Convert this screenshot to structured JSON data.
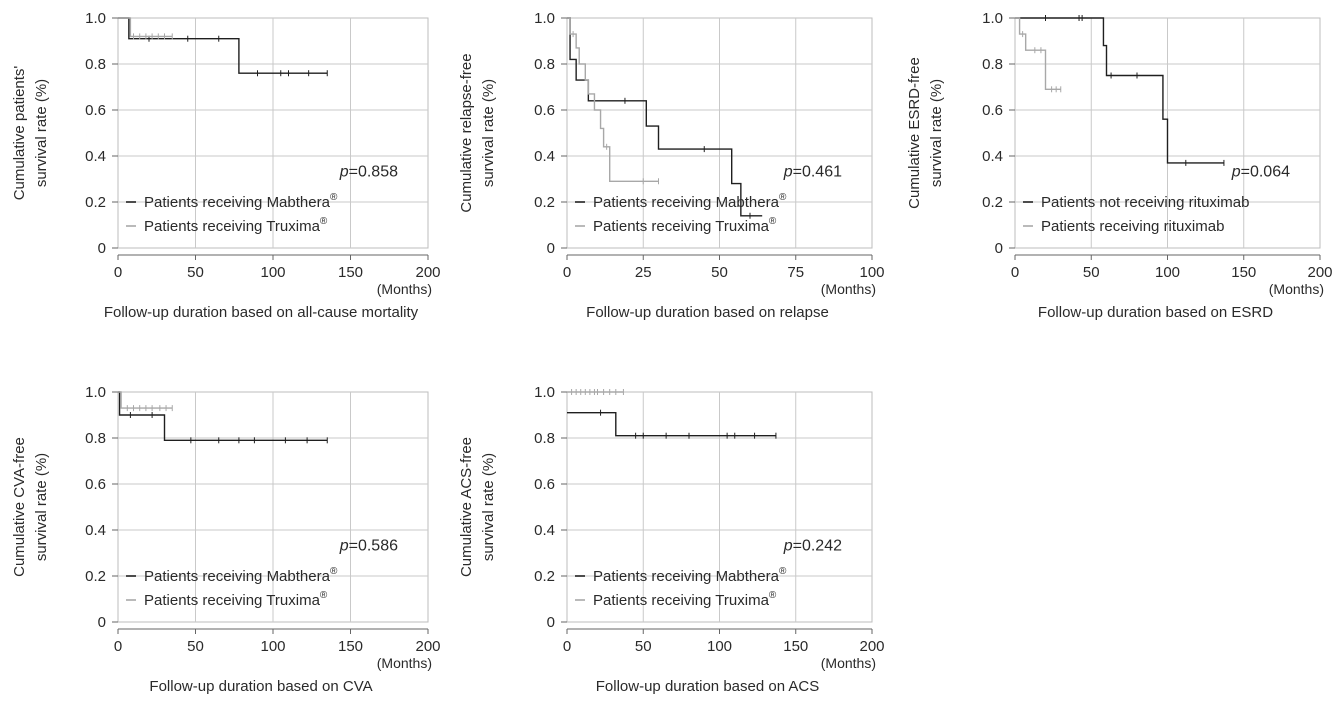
{
  "charts": [
    {
      "type": "line",
      "subtype": "kaplan-meier",
      "title": "",
      "xlabel": "Follow-up duration based on all-cause mortality",
      "x_unit": "(Months)",
      "ylabel": [
        "Cumulative patients'",
        "survival rate (%)"
      ],
      "xlim": [
        0,
        200
      ],
      "ylim": [
        0,
        1.0
      ],
      "x_ticks": [
        "0",
        "50",
        "100",
        "150",
        "200"
      ],
      "y_ticks": [
        "0",
        "0.2",
        "0.4",
        "0.6",
        "0.8",
        "1.0"
      ],
      "p_prefix": "p",
      "p_value": "=0.858",
      "legend": [
        {
          "label": "Patients receiving Mabthera",
          "sup": "®",
          "color": "#1f1f1f"
        },
        {
          "label": "Patients receiving Truxima",
          "sup": "®",
          "color": "#a8a8a8"
        }
      ],
      "series": [
        {
          "name": "Patients receiving Mabthera",
          "color": "#1f1f1f",
          "steps": [
            [
              0,
              1.0
            ],
            [
              7,
              0.91
            ],
            [
              78,
              0.76
            ],
            [
              135,
              0.76
            ]
          ],
          "censored": [
            20,
            45,
            65,
            90,
            105,
            110,
            123,
            135
          ]
        },
        {
          "name": "Patients receiving Truxima",
          "color": "#a8a8a8",
          "steps": [
            [
              0,
              1.0
            ],
            [
              8,
              0.92
            ],
            [
              35,
              0.92
            ]
          ],
          "censored": [
            10,
            14,
            18,
            22,
            26,
            30,
            35
          ]
        }
      ]
    },
    {
      "type": "line",
      "subtype": "kaplan-meier",
      "title": "",
      "xlabel": "Follow-up duration based on relapse",
      "x_unit": "(Months)",
      "ylabel": [
        "Cumulative relapse-free",
        "survival rate (%)"
      ],
      "xlim": [
        0,
        100
      ],
      "ylim": [
        0,
        1.0
      ],
      "x_ticks": [
        "0",
        "25",
        "50",
        "75",
        "100"
      ],
      "y_ticks": [
        "0",
        "0.2",
        "0.4",
        "0.6",
        "0.8",
        "1.0"
      ],
      "p_prefix": "p",
      "p_value": "=0.461",
      "legend": [
        {
          "label": "Patients receiving Mabthera",
          "sup": "®",
          "color": "#1f1f1f"
        },
        {
          "label": "Patients receiving Truxima",
          "sup": "®",
          "color": "#a8a8a8"
        }
      ],
      "series": [
        {
          "name": "Patients receiving Mabthera",
          "color": "#1f1f1f",
          "steps": [
            [
              0,
              1.0
            ],
            [
              1,
              0.82
            ],
            [
              3,
              0.73
            ],
            [
              7,
              0.64
            ],
            [
              26,
              0.53
            ],
            [
              30,
              0.43
            ],
            [
              54,
              0.28
            ],
            [
              57,
              0.14
            ],
            [
              64,
              0.14
            ]
          ],
          "censored": [
            19,
            45,
            60
          ]
        },
        {
          "name": "Patients receiving Truxima",
          "color": "#a8a8a8",
          "steps": [
            [
              0,
              1.0
            ],
            [
              1,
              0.93
            ],
            [
              3,
              0.87
            ],
            [
              4,
              0.8
            ],
            [
              6,
              0.73
            ],
            [
              7,
              0.67
            ],
            [
              9,
              0.6
            ],
            [
              11,
              0.52
            ],
            [
              12,
              0.44
            ],
            [
              14,
              0.29
            ],
            [
              30,
              0.29
            ]
          ],
          "censored": [
            2,
            13,
            25,
            30
          ]
        }
      ]
    },
    {
      "type": "line",
      "subtype": "kaplan-meier",
      "title": "",
      "xlabel": "Follow-up duration based on ESRD",
      "x_unit": "(Months)",
      "ylabel": [
        "Cumulative ESRD-free",
        "survival rate (%)"
      ],
      "xlim": [
        0,
        200
      ],
      "ylim": [
        0,
        1.0
      ],
      "x_ticks": [
        "0",
        "50",
        "100",
        "150",
        "200"
      ],
      "y_ticks": [
        "0",
        "0.2",
        "0.4",
        "0.6",
        "0.8",
        "1.0"
      ],
      "p_prefix": "p",
      "p_value": "=0.064",
      "legend": [
        {
          "label": "Patients not receiving rituximab",
          "sup": "",
          "color": "#1f1f1f"
        },
        {
          "label": "Patients receiving rituximab",
          "sup": "",
          "color": "#a8a8a8"
        }
      ],
      "series": [
        {
          "name": "Patients not receiving rituximab",
          "color": "#1f1f1f",
          "steps": [
            [
              0,
              1.0
            ],
            [
              58,
              0.88
            ],
            [
              60,
              0.75
            ],
            [
              97,
              0.56
            ],
            [
              100,
              0.37
            ],
            [
              137,
              0.37
            ]
          ],
          "censored": [
            20,
            42,
            44,
            63,
            80,
            112,
            137
          ]
        },
        {
          "name": "Patients receiving rituximab",
          "color": "#a8a8a8",
          "steps": [
            [
              0,
              1.0
            ],
            [
              3,
              0.93
            ],
            [
              7,
              0.86
            ],
            [
              20,
              0.69
            ],
            [
              30,
              0.69
            ]
          ],
          "censored": [
            5,
            13,
            17,
            24,
            27,
            30
          ]
        }
      ]
    },
    {
      "type": "line",
      "subtype": "kaplan-meier",
      "title": "",
      "xlabel": "Follow-up duration based on CVA",
      "x_unit": "(Months)",
      "ylabel": [
        "Cumulative CVA-free",
        "survival rate (%)"
      ],
      "xlim": [
        0,
        200
      ],
      "ylim": [
        0,
        1.0
      ],
      "x_ticks": [
        "0",
        "50",
        "100",
        "150",
        "200"
      ],
      "y_ticks": [
        "0",
        "0.2",
        "0.4",
        "0.6",
        "0.8",
        "1.0"
      ],
      "p_prefix": "p",
      "p_value": "=0.586",
      "legend": [
        {
          "label": "Patients receiving Mabthera",
          "sup": "®",
          "color": "#1f1f1f"
        },
        {
          "label": "Patients receiving Truxima",
          "sup": "®",
          "color": "#a8a8a8"
        }
      ],
      "series": [
        {
          "name": "Patients receiving Mabthera",
          "color": "#1f1f1f",
          "steps": [
            [
              0,
              1.0
            ],
            [
              1,
              0.9
            ],
            [
              30,
              0.79
            ],
            [
              135,
              0.79
            ]
          ],
          "censored": [
            8,
            22,
            47,
            65,
            78,
            88,
            108,
            122,
            135
          ]
        },
        {
          "name": "Patients receiving Truxima",
          "color": "#a8a8a8",
          "steps": [
            [
              0,
              1.0
            ],
            [
              2,
              0.93
            ],
            [
              35,
              0.93
            ]
          ],
          "censored": [
            6,
            10,
            14,
            18,
            22,
            27,
            31,
            35
          ]
        }
      ]
    },
    {
      "type": "line",
      "subtype": "kaplan-meier",
      "title": "",
      "xlabel": "Follow-up duration based on ACS",
      "x_unit": "(Months)",
      "ylabel": [
        "Cumulative ACS-free",
        "survival rate (%)"
      ],
      "xlim": [
        0,
        200
      ],
      "ylim": [
        0,
        1.0
      ],
      "x_ticks": [
        "0",
        "50",
        "100",
        "150",
        "200"
      ],
      "y_ticks": [
        "0",
        "0.2",
        "0.4",
        "0.6",
        "0.8",
        "1.0"
      ],
      "p_prefix": "p",
      "p_value": "=0.242",
      "legend": [
        {
          "label": "Patients receiving Mabthera",
          "sup": "®",
          "color": "#1f1f1f"
        },
        {
          "label": "Patients receiving Truxima",
          "sup": "®",
          "color": "#a8a8a8"
        }
      ],
      "series": [
        {
          "name": "Patients receiving Mabthera",
          "color": "#1f1f1f",
          "steps": [
            [
              0,
              0.91
            ],
            [
              32,
              0.81
            ],
            [
              137,
              0.81
            ]
          ],
          "censored": [
            22,
            45,
            50,
            65,
            80,
            105,
            110,
            123,
            137
          ]
        },
        {
          "name": "Patients receiving Truxima",
          "color": "#a8a8a8",
          "steps": [
            [
              0,
              1.0
            ],
            [
              37,
              1.0
            ]
          ],
          "censored": [
            3,
            6,
            9,
            12,
            15,
            18,
            20,
            24,
            28,
            32,
            37
          ]
        }
      ]
    }
  ]
}
